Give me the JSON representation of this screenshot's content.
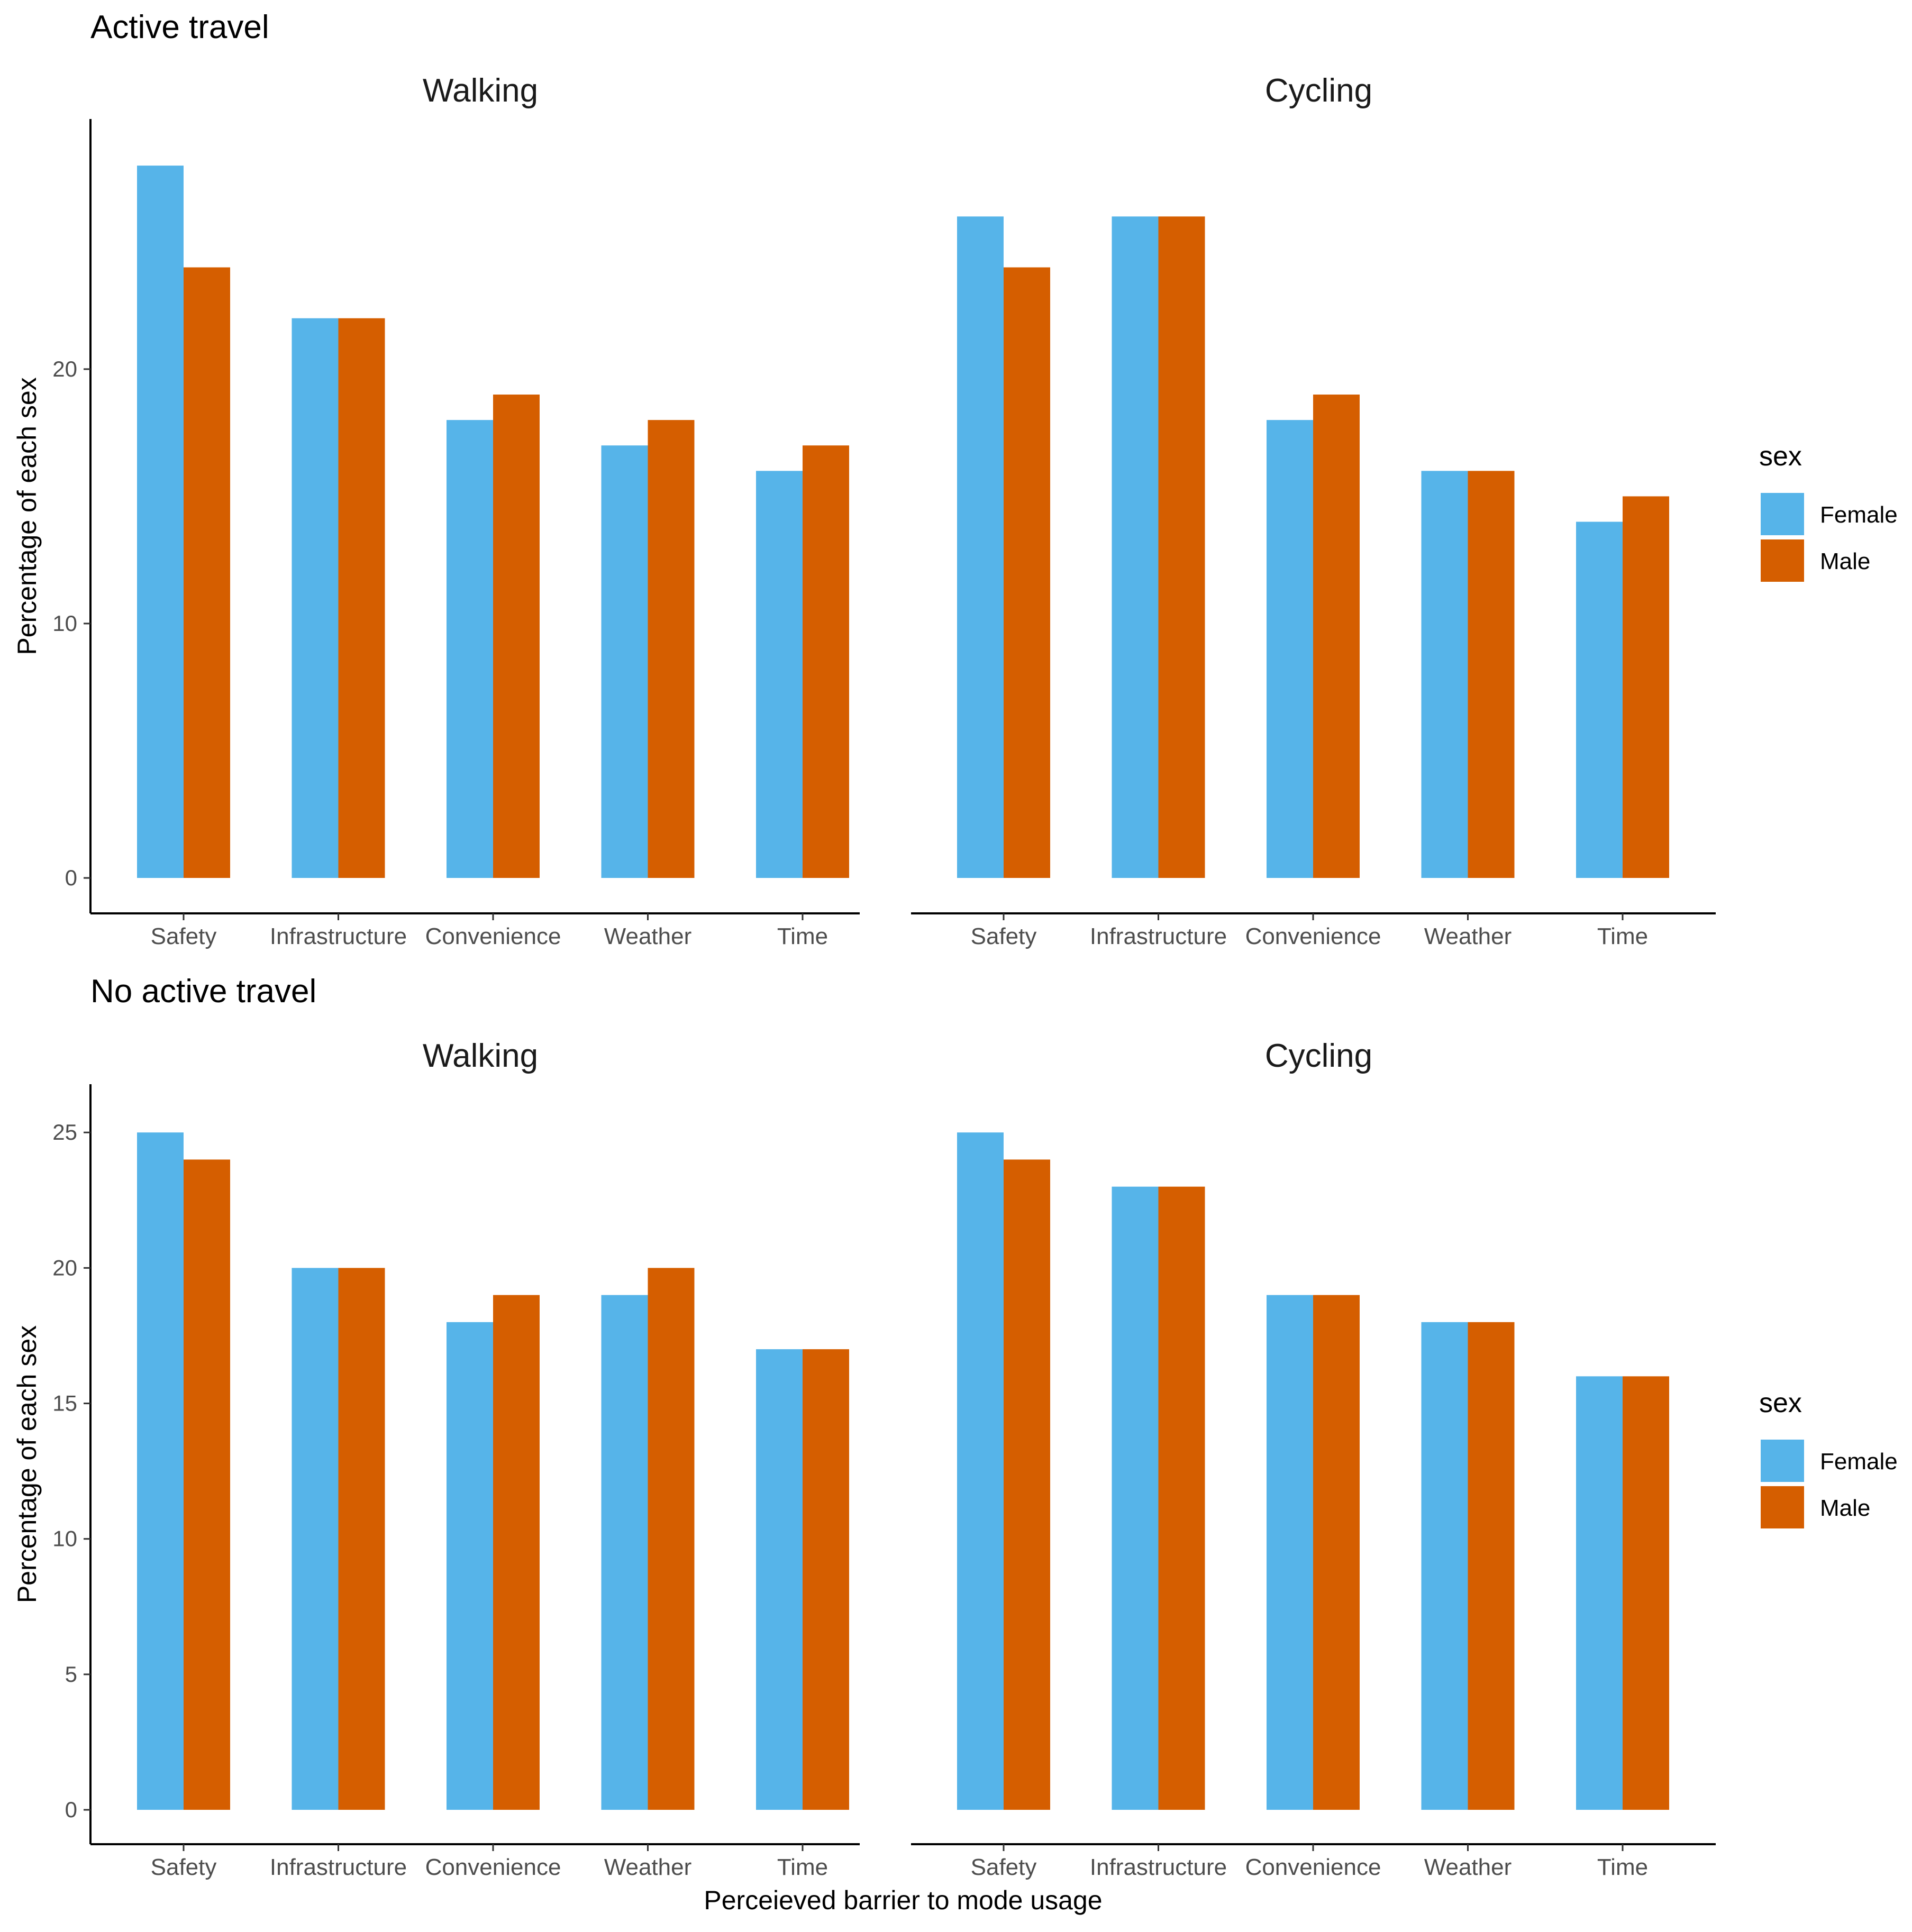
{
  "colors": {
    "female": "#56B4E9",
    "male": "#D55E00",
    "axis": "#000000",
    "text": "#4d4d4d"
  },
  "axis_labels": {
    "y": "Percentage of each sex",
    "x": "Perceieved barrier to mode usage"
  },
  "legend": {
    "title": "sex",
    "entries": [
      "Female",
      "Male"
    ],
    "placement": "right"
  },
  "chart_data": [
    {
      "type": "bar",
      "title": "Active travel",
      "xlabel": "",
      "ylabel": "Percentage of each sex",
      "ylim": [
        0,
        29
      ],
      "yticks": [
        0,
        10,
        20
      ],
      "grid": false,
      "categories": [
        "Safety",
        "Infrastructure",
        "Convenience",
        "Weather",
        "Time"
      ],
      "facets": [
        {
          "name": "Walking",
          "series": [
            {
              "name": "Female",
              "values": [
                28,
                22,
                18,
                17,
                16
              ]
            },
            {
              "name": "Male",
              "values": [
                24,
                22,
                19,
                18,
                17
              ]
            }
          ]
        },
        {
          "name": "Cycling",
          "series": [
            {
              "name": "Female",
              "values": [
                26,
                26,
                18,
                16,
                14
              ]
            },
            {
              "name": "Male",
              "values": [
                24,
                26,
                19,
                16,
                15
              ]
            }
          ]
        }
      ]
    },
    {
      "type": "bar",
      "title": "No active travel",
      "xlabel": "Perceieved barrier to mode usage",
      "ylabel": "Percentage of each sex",
      "ylim": [
        0,
        26
      ],
      "yticks": [
        0,
        5,
        10,
        15,
        20,
        25
      ],
      "grid": false,
      "categories": [
        "Safety",
        "Infrastructure",
        "Convenience",
        "Weather",
        "Time"
      ],
      "facets": [
        {
          "name": "Walking",
          "series": [
            {
              "name": "Female",
              "values": [
                25,
                20,
                18,
                19,
                17
              ]
            },
            {
              "name": "Male",
              "values": [
                24,
                20,
                19,
                20,
                17
              ]
            }
          ]
        },
        {
          "name": "Cycling",
          "series": [
            {
              "name": "Female",
              "values": [
                25,
                23,
                19,
                18,
                16
              ]
            },
            {
              "name": "Male",
              "values": [
                24,
                23,
                19,
                18,
                16
              ]
            }
          ]
        }
      ]
    }
  ]
}
